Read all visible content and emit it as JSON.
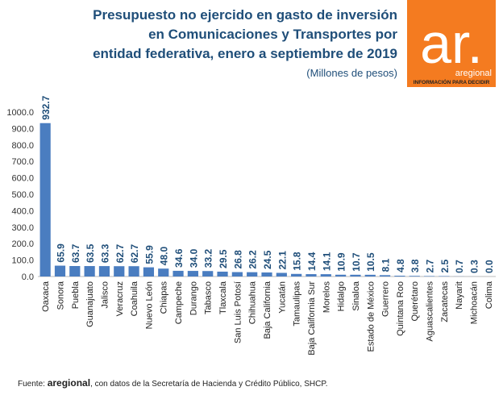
{
  "chart_data": {
    "type": "bar",
    "title_lines": [
      "Presupuesto no ejercido en gasto de inversión",
      "en Comunicaciones y Transportes por",
      "entidad federativa, enero a septiembre de 2019"
    ],
    "subtitle": "(Millones de pesos)",
    "categories": [
      "Oaxaca",
      "Sonora",
      "Puebla",
      "Guanajuato",
      "Jalisco",
      "Veracruz",
      "Coahuila",
      "Nuevo León",
      "Chiapas",
      "Campeche",
      "Durango",
      "Tabasco",
      "Tlaxcala",
      "San Luis Potosí",
      "Chihuahua",
      "Baja California",
      "Yucatán",
      "Tamaulipas",
      "Baja California Sur",
      "Morelos",
      "Hidalgo",
      "Sinaloa",
      "Estado de México",
      "Guerrero",
      "Quintana Roo",
      "Querétaro",
      "Aguascalientes",
      "Zacatecas",
      "Nayarit",
      "Michoacán",
      "Colima"
    ],
    "values": [
      932.7,
      65.9,
      63.7,
      63.5,
      63.3,
      62.7,
      62.7,
      55.9,
      48.0,
      34.6,
      34.0,
      33.2,
      29.5,
      26.8,
      26.2,
      24.5,
      22.1,
      15.8,
      14.4,
      14.1,
      10.9,
      10.7,
      10.5,
      8.1,
      4.8,
      3.8,
      2.7,
      2.5,
      0.7,
      0.3,
      0.0
    ],
    "value_labels": [
      "932.7",
      "65.9",
      "63.7",
      "63.5",
      "63.3",
      "62.7",
      "62.7",
      "55.9",
      "48.0",
      "34.6",
      "34.0",
      "33.2",
      "29.5",
      "26.8",
      "26.2",
      "24.5",
      "22.1",
      "15.8",
      "14.4",
      "14.1",
      "10.9",
      "10.7",
      "10.5",
      "8.1",
      "4.8",
      "3.8",
      "2.7",
      "2.5",
      "0.7",
      "0.3",
      "0.0"
    ],
    "color": "#4a7dc0",
    "ylim": [
      0,
      1000
    ],
    "yticks": [
      {
        "value": 0,
        "label": "0.0"
      },
      {
        "value": 100,
        "label": "100.0"
      },
      {
        "value": 200,
        "label": "200.0"
      },
      {
        "value": 300,
        "label": "300.0"
      },
      {
        "value": 400,
        "label": "400.0"
      },
      {
        "value": 500,
        "label": "500.0"
      },
      {
        "value": 600,
        "label": "600.0"
      },
      {
        "value": 700,
        "label": "700.0"
      },
      {
        "value": 800,
        "label": "800.0"
      },
      {
        "value": 900,
        "label": "900.0"
      },
      {
        "value": 1000,
        "label": "1000.0"
      }
    ],
    "grid": false,
    "source": {
      "prefix": "Fuente: ",
      "brand": "aregional",
      "suffix": ", con datos de la Secretaría de Hacienda y Crédito Público, SHCP."
    },
    "logo": {
      "mark": "ar.",
      "name": "aregional",
      "tagline": "INFORMACIÓN PARA DECIDIR"
    }
  }
}
